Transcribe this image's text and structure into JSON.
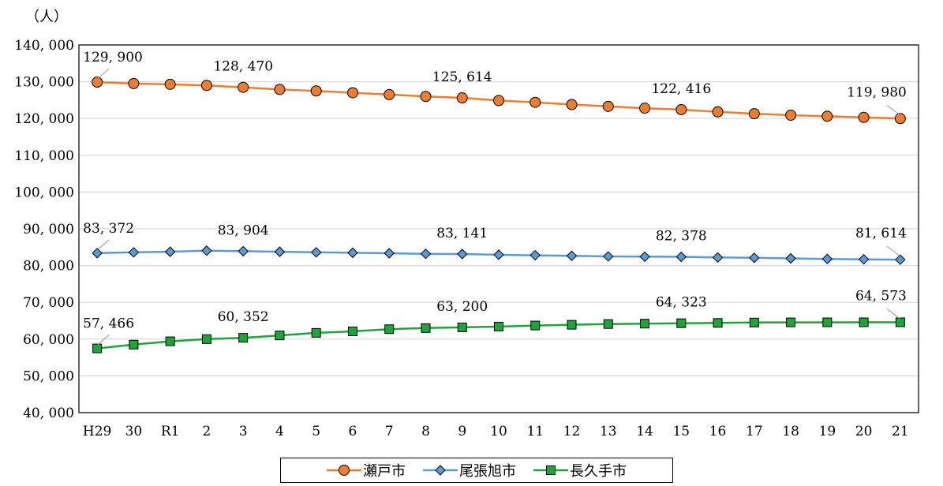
{
  "chart_data": {
    "type": "line",
    "unit_label": "（人）",
    "categories": [
      "H29",
      "30",
      "R1",
      "2",
      "3",
      "4",
      "5",
      "6",
      "7",
      "8",
      "9",
      "10",
      "11",
      "12",
      "13",
      "14",
      "15",
      "16",
      "17",
      "18",
      "19",
      "20",
      "21"
    ],
    "ylim": [
      40000,
      140000
    ],
    "yticks": [
      {
        "value": 40000,
        "label": "40, 000"
      },
      {
        "value": 50000,
        "label": "50, 000"
      },
      {
        "value": 60000,
        "label": "60, 000"
      },
      {
        "value": 70000,
        "label": "70, 000"
      },
      {
        "value": 80000,
        "label": "80, 000"
      },
      {
        "value": 90000,
        "label": "90, 000"
      },
      {
        "value": 100000,
        "label": "100, 000"
      },
      {
        "value": 110000,
        "label": "110, 000"
      },
      {
        "value": 120000,
        "label": "120, 000"
      },
      {
        "value": 130000,
        "label": "130, 000"
      },
      {
        "value": 140000,
        "label": "140, 000"
      }
    ],
    "grid": "horizontal",
    "legend_position": "bottom",
    "series": [
      {
        "name": "瀬戸市",
        "color": "#ED7D31",
        "marker": "circle",
        "values": [
          129900,
          129500,
          129300,
          129000,
          128470,
          127900,
          127500,
          127000,
          126500,
          126000,
          125614,
          124900,
          124400,
          123800,
          123300,
          122800,
          122416,
          121800,
          121300,
          120900,
          120600,
          120300,
          119980
        ],
        "labels": [
          {
            "index": 0,
            "text": "129, 900"
          },
          {
            "index": 4,
            "text": "128, 470"
          },
          {
            "index": 10,
            "text": "125, 614"
          },
          {
            "index": 16,
            "text": "122, 416"
          },
          {
            "index": 22,
            "text": "119, 980"
          }
        ]
      },
      {
        "name": "尾張旭市",
        "color": "#5B9BD5",
        "marker": "diamond",
        "values": [
          83372,
          83600,
          83750,
          84050,
          83904,
          83750,
          83600,
          83480,
          83350,
          83200,
          83141,
          82950,
          82800,
          82650,
          82500,
          82420,
          82378,
          82200,
          82100,
          81950,
          81800,
          81700,
          81614
        ],
        "labels": [
          {
            "index": 0,
            "text": "83, 372"
          },
          {
            "index": 4,
            "text": "83, 904"
          },
          {
            "index": 10,
            "text": "83, 141"
          },
          {
            "index": 16,
            "text": "82, 378"
          },
          {
            "index": 22,
            "text": "81, 614"
          }
        ]
      },
      {
        "name": "長久手市",
        "color": "#1FA33C",
        "marker": "square",
        "values": [
          57466,
          58500,
          59400,
          60000,
          60352,
          61000,
          61700,
          62100,
          62700,
          63000,
          63200,
          63400,
          63700,
          63900,
          64100,
          64200,
          64323,
          64400,
          64500,
          64550,
          64560,
          64570,
          64573
        ],
        "labels": [
          {
            "index": 0,
            "text": "57, 466"
          },
          {
            "index": 4,
            "text": "60, 352"
          },
          {
            "index": 10,
            "text": "63, 200"
          },
          {
            "index": 16,
            "text": "64, 323"
          },
          {
            "index": 22,
            "text": "64, 573"
          }
        ]
      }
    ]
  }
}
